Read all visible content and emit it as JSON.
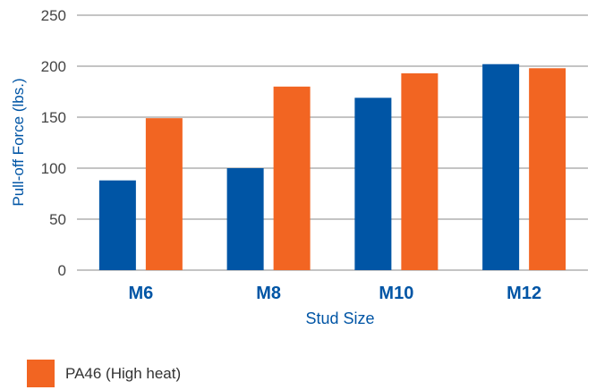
{
  "chart_data": {
    "type": "bar",
    "title": "",
    "xlabel": "Stud Size",
    "ylabel": "Pull-off Force (lbs.)",
    "ylim": [
      0,
      250
    ],
    "yticks": [
      0,
      50,
      100,
      150,
      200,
      250
    ],
    "grid": true,
    "categories": [
      "M6",
      "M8",
      "M10",
      "M12"
    ],
    "series": [
      {
        "name": "",
        "color": "#0055a5",
        "values": [
          88,
          100,
          169,
          202
        ]
      },
      {
        "name": "PA46 (High heat)",
        "color": "#f26522",
        "values": [
          149,
          180,
          193,
          198
        ]
      }
    ],
    "legend": {
      "placement": "bottom-left",
      "entries": [
        "PA46 (High heat)"
      ]
    },
    "colors": {
      "axis_text": "#0055a5",
      "tick_text": "#444444",
      "grid": "#888888"
    }
  }
}
